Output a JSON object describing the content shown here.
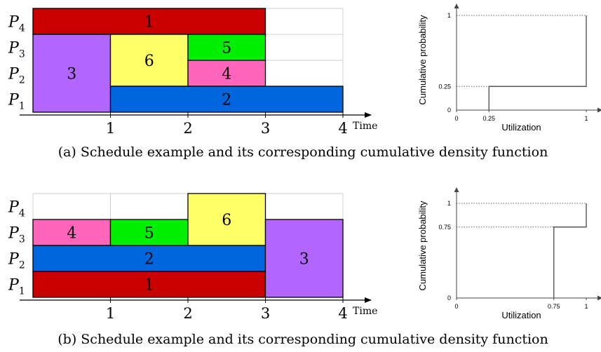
{
  "colors": {
    "red": "#c80000",
    "purple": "#b366ff",
    "yellow": "#ffff66",
    "green": "#00ee00",
    "pink": "#ff66bb",
    "blue": "#0066dd",
    "grid": "#d0d0d0",
    "ink": "#000000",
    "plot_line": "#555555"
  },
  "panel_a": {
    "caption": "(a) Schedule example and its corresponding cumulative density function",
    "gantt": {
      "processors": [
        "P",
        "P",
        "P",
        "P"
      ],
      "processor_subs": [
        "1",
        "2",
        "3",
        "4"
      ],
      "time_ticks": [
        "1",
        "2",
        "3",
        "4"
      ],
      "time_label": "Time",
      "tasks": [
        {
          "label": "1",
          "color": "red",
          "start": 0,
          "end": 3,
          "proc_start": 3,
          "proc_end": 4
        },
        {
          "label": "3",
          "color": "purple",
          "start": 0,
          "end": 1,
          "proc_start": 0,
          "proc_end": 3
        },
        {
          "label": "6",
          "color": "yellow",
          "start": 1,
          "end": 2,
          "proc_start": 1,
          "proc_end": 3
        },
        {
          "label": "5",
          "color": "green",
          "start": 2,
          "end": 3,
          "proc_start": 2,
          "proc_end": 3
        },
        {
          "label": "4",
          "color": "pink",
          "start": 2,
          "end": 3,
          "proc_start": 1,
          "proc_end": 2
        },
        {
          "label": "2",
          "color": "blue",
          "start": 1,
          "end": 4,
          "proc_start": 0,
          "proc_end": 1
        }
      ]
    },
    "cdf": {
      "ylabel": "Cumulative probability",
      "xlabel": "Utilization",
      "x_ticks": [
        "0",
        "0.25",
        "1"
      ],
      "y_ticks": [
        "0",
        "0.25",
        "1"
      ],
      "x_tick_values": [
        0,
        0.25,
        1
      ],
      "y_tick_values": [
        0,
        0.25,
        1
      ],
      "steps": [
        {
          "x": 0.25,
          "y_from": 0,
          "y_to": 0.25
        },
        {
          "x": 1,
          "y_from": 0.25,
          "y_to": 1
        }
      ]
    }
  },
  "panel_b": {
    "caption": "(b) Schedule example and its corresponding cumulative density function",
    "gantt": {
      "processors": [
        "P",
        "P",
        "P",
        "P"
      ],
      "processor_subs": [
        "1",
        "2",
        "3",
        "4"
      ],
      "time_ticks": [
        "1",
        "2",
        "3",
        "4"
      ],
      "time_label": "Time",
      "tasks": [
        {
          "label": "1",
          "color": "red",
          "start": 0,
          "end": 3,
          "proc_start": 0,
          "proc_end": 1
        },
        {
          "label": "2",
          "color": "blue",
          "start": 0,
          "end": 3,
          "proc_start": 1,
          "proc_end": 2
        },
        {
          "label": "4",
          "color": "pink",
          "start": 0,
          "end": 1,
          "proc_start": 2,
          "proc_end": 3
        },
        {
          "label": "5",
          "color": "green",
          "start": 1,
          "end": 2,
          "proc_start": 2,
          "proc_end": 3
        },
        {
          "label": "6",
          "color": "yellow",
          "start": 2,
          "end": 3,
          "proc_start": 2,
          "proc_end": 4
        },
        {
          "label": "3",
          "color": "purple",
          "start": 3,
          "end": 4,
          "proc_start": 0,
          "proc_end": 3
        }
      ]
    },
    "cdf": {
      "ylabel": "Cumulative probability",
      "xlabel": "Utilization",
      "x_ticks": [
        "0",
        "0.75",
        "1"
      ],
      "y_ticks": [
        "0",
        "0.75",
        "1"
      ],
      "x_tick_values": [
        0,
        0.75,
        1
      ],
      "y_tick_values": [
        0,
        0.75,
        1
      ],
      "steps": [
        {
          "x": 0.75,
          "y_from": 0,
          "y_to": 0.75
        },
        {
          "x": 1,
          "y_from": 0.75,
          "y_to": 1
        }
      ]
    }
  }
}
